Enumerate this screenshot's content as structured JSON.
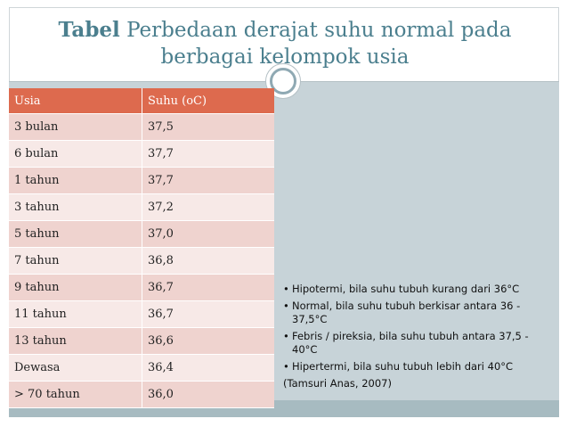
{
  "title": {
    "bold": "Tabel",
    "rest": " Perbedaan derajat suhu normal pada berbagai kelompok usia"
  },
  "table": {
    "headers": [
      "Usia",
      "Suhu (oC)"
    ],
    "rows": [
      [
        "3 bulan",
        "37,5"
      ],
      [
        "6 bulan",
        "37,7"
      ],
      [
        "1 tahun",
        "37,7"
      ],
      [
        "3 tahun",
        "37,2"
      ],
      [
        "5 tahun",
        "37,0"
      ],
      [
        "7 tahun",
        "36,8"
      ],
      [
        "9 tahun",
        "36,7"
      ],
      [
        "11 tahun",
        "36,7"
      ],
      [
        "13 tahun",
        "36,6"
      ],
      [
        "Dewasa",
        "36,4"
      ],
      [
        "> 70 tahun",
        "36,0"
      ]
    ]
  },
  "notes": {
    "bullets": [
      "Hipotermi, bila suhu tubuh kurang dari 36°C",
      "Normal, bila suhu tubuh berkisar antara 36 - 37,5°C",
      "Febris / pireksia, bila suhu tubuh antara 37,5 - 40°C",
      "Hipertermi, bila suhu tubuh lebih dari 40°C"
    ],
    "bullet_char": "•",
    "source": "(Tamsuri Anas, 2007)"
  },
  "colors": {
    "title": "#4b7f8e",
    "header": "#dd6a4e",
    "row_dark": "#efd3cf",
    "row_light": "#f7e9e7",
    "panel": "#c7d3d8"
  }
}
